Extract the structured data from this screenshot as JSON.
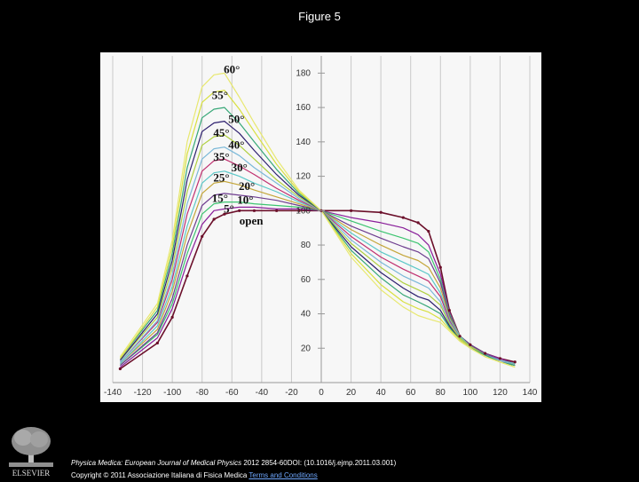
{
  "figure_title": "Figure 5",
  "footer": {
    "journal": "Physica Medica: European Journal of Medical Physics",
    "citation": " 2012 2854-60DOI: (10.1016/j.ejmp.2011.03.001)",
    "copyright": "Copyright © 2011 Associazione Italiana di Fisica Medica ",
    "terms": "Terms and Conditions"
  },
  "publisher_logo": "ELSEVIER",
  "chart_data": {
    "type": "line",
    "title": "",
    "xlabel": "",
    "ylabel": "",
    "xlim": [
      -140,
      140
    ],
    "ylim": [
      0,
      190
    ],
    "x_ticks": [
      -140,
      -120,
      -100,
      -80,
      -60,
      -40,
      -20,
      0,
      20,
      40,
      60,
      80,
      100,
      120,
      140
    ],
    "y_ticks": [
      20,
      40,
      60,
      80,
      100,
      120,
      140,
      160,
      180
    ],
    "grid": "vertical only",
    "legend": "inline labels near curve peaks",
    "x": [
      -135,
      -110,
      -100,
      -90,
      -80,
      -72,
      -65,
      -55,
      -45,
      -30,
      -15,
      0,
      20,
      40,
      55,
      65,
      72,
      80,
      86,
      93,
      100,
      110,
      120,
      130
    ],
    "series": [
      {
        "name": "open",
        "color": "#6b0f2a",
        "values": [
          8,
          23,
          38,
          62,
          85,
          95,
          98,
          100,
          100,
          100,
          100,
          100,
          100,
          99,
          96,
          93,
          88,
          67,
          42,
          27,
          22,
          17,
          14,
          12
        ]
      },
      {
        "name": "5°",
        "color": "#8a1f9a",
        "values": [
          9,
          26,
          43,
          70,
          92,
          100,
          101,
          102,
          102,
          101,
          101,
          100,
          96,
          93,
          90,
          86,
          80,
          63,
          41,
          27,
          22,
          17,
          14,
          11
        ]
      },
      {
        "name": "10°",
        "color": "#3cc470",
        "values": [
          10,
          28,
          46,
          75,
          98,
          104,
          105,
          105,
          104,
          103,
          102,
          100,
          94,
          88,
          84,
          81,
          76,
          60,
          40,
          27,
          22,
          17,
          13,
          11
        ]
      },
      {
        "name": "15°",
        "color": "#6e3d8f",
        "values": [
          10,
          29,
          49,
          80,
          103,
          109,
          110,
          109,
          108,
          106,
          103,
          100,
          91,
          84,
          79,
          76,
          72,
          58,
          39,
          27,
          22,
          17,
          13,
          11
        ]
      },
      {
        "name": "20°",
        "color": "#c4a63a",
        "values": [
          11,
          31,
          53,
          86,
          110,
          116,
          117,
          115,
          112,
          108,
          104,
          100,
          89,
          80,
          74,
          71,
          67,
          55,
          38,
          27,
          21,
          16,
          13,
          11
        ]
      },
      {
        "name": "25°",
        "color": "#5cc8c8",
        "values": [
          11,
          33,
          56,
          91,
          116,
          122,
          123,
          120,
          116,
          111,
          105,
          100,
          87,
          76,
          70,
          66,
          63,
          52,
          37,
          27,
          21,
          16,
          13,
          11
        ]
      },
      {
        "name": "30°",
        "color": "#c03070",
        "values": [
          12,
          35,
          60,
          98,
          123,
          129,
          130,
          126,
          121,
          113,
          106,
          100,
          85,
          73,
          66,
          62,
          59,
          50,
          36,
          26,
          21,
          16,
          13,
          10
        ]
      },
      {
        "name": "35°",
        "color": "#7ab8d8",
        "values": [
          12,
          36,
          63,
          104,
          130,
          136,
          137,
          132,
          125,
          116,
          107,
          100,
          83,
          70,
          62,
          58,
          55,
          47,
          35,
          26,
          21,
          16,
          13,
          10
        ]
      },
      {
        "name": "40°",
        "color": "#b0d040",
        "values": [
          13,
          38,
          67,
          111,
          138,
          143,
          144,
          138,
          130,
          118,
          108,
          100,
          81,
          67,
          58,
          54,
          51,
          45,
          34,
          26,
          21,
          16,
          12,
          10
        ]
      },
      {
        "name": "45°",
        "color": "#2d1f6e",
        "values": [
          13,
          40,
          71,
          118,
          146,
          151,
          152,
          145,
          135,
          121,
          109,
          100,
          79,
          64,
          55,
          50,
          48,
          42,
          33,
          25,
          20,
          16,
          12,
          10
        ]
      },
      {
        "name": "50°",
        "color": "#38a878",
        "values": [
          14,
          42,
          75,
          125,
          154,
          159,
          160,
          151,
          140,
          124,
          110,
          100,
          77,
          61,
          51,
          47,
          44,
          40,
          32,
          25,
          20,
          16,
          12,
          10
        ]
      },
      {
        "name": "55°",
        "color": "#d8e040",
        "values": [
          14,
          44,
          79,
          133,
          163,
          169,
          170,
          159,
          146,
          127,
          111,
          100,
          75,
          57,
          47,
          43,
          41,
          37,
          31,
          25,
          20,
          15,
          12,
          9
        ]
      },
      {
        "name": "60°",
        "color": "#e8e870",
        "values": [
          15,
          46,
          83,
          140,
          172,
          179,
          180,
          166,
          151,
          130,
          112,
          100,
          73,
          54,
          44,
          39,
          37,
          35,
          30,
          24,
          20,
          15,
          12,
          9
        ]
      }
    ],
    "curve_labels": [
      {
        "text": "60°",
        "x": -60,
        "y": 180
      },
      {
        "text": "55°",
        "x": -68,
        "y": 165
      },
      {
        "text": "50°",
        "x": -57,
        "y": 151
      },
      {
        "text": "45°",
        "x": -67,
        "y": 143
      },
      {
        "text": "40°",
        "x": -57,
        "y": 136
      },
      {
        "text": "35°",
        "x": -67,
        "y": 129
      },
      {
        "text": "30°",
        "x": -55,
        "y": 123
      },
      {
        "text": "25°",
        "x": -67,
        "y": 117
      },
      {
        "text": "20°",
        "x": -50,
        "y": 112
      },
      {
        "text": "15°",
        "x": -68,
        "y": 105
      },
      {
        "text": "10°",
        "x": -51,
        "y": 104
      },
      {
        "text": "5°",
        "x": -62,
        "y": 99
      },
      {
        "text": "open",
        "x": -47,
        "y": 92
      }
    ]
  }
}
